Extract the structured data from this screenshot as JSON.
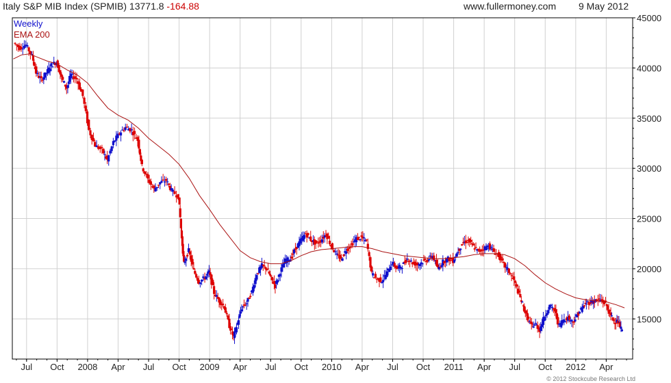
{
  "header": {
    "title": "Italy S&P MIB Index (SPMIB)",
    "last": "13771.8",
    "change": "-164.88",
    "source": "www.fullermoney.com",
    "date": "9 May 2012"
  },
  "legend": {
    "weekly": "Weekly",
    "ema": "EMA 200"
  },
  "copyright": "© 2012 Stockcube Research Ltd",
  "colors": {
    "up": "#1010cc",
    "down": "#dd0000",
    "ema": "#aa1111",
    "grid": "#d0d0d0",
    "axis": "#000000"
  },
  "chart_data": {
    "type": "candlestick",
    "frequency": "weekly",
    "ylim": [
      11000,
      45000
    ],
    "y_ticks": [
      15000,
      20000,
      25000,
      30000,
      35000,
      40000,
      45000
    ],
    "x_ticks": [
      {
        "label": "Jul",
        "t": 0
      },
      {
        "label": "Oct",
        "t": 3
      },
      {
        "label": "2008",
        "t": 6
      },
      {
        "label": "Apr",
        "t": 9
      },
      {
        "label": "Jul",
        "t": 12
      },
      {
        "label": "Oct",
        "t": 15
      },
      {
        "label": "2009",
        "t": 18
      },
      {
        "label": "Apr",
        "t": 21
      },
      {
        "label": "Jul",
        "t": 24
      },
      {
        "label": "Oct",
        "t": 27
      },
      {
        "label": "2010",
        "t": 30
      },
      {
        "label": "Apr",
        "t": 33
      },
      {
        "label": "Jul",
        "t": 36
      },
      {
        "label": "Oct",
        "t": 39
      },
      {
        "label": "2011",
        "t": 42
      },
      {
        "label": "Apr",
        "t": 45
      },
      {
        "label": "Jul",
        "t": 48
      },
      {
        "label": "Oct",
        "t": 51
      },
      {
        "label": "2012",
        "t": 54
      },
      {
        "label": "Apr",
        "t": 57
      }
    ],
    "t_range": [
      -1.4,
      59.6
    ],
    "series": [
      {
        "name": "Weekly",
        "style": "ohlc-candles",
        "points": [
          [
            -1.2,
            42500
          ],
          [
            -0.6,
            42000
          ],
          [
            0.0,
            42300
          ],
          [
            0.6,
            41200
          ],
          [
            1.0,
            39500
          ],
          [
            1.5,
            38800
          ],
          [
            2.0,
            39500
          ],
          [
            2.5,
            40300
          ],
          [
            3.0,
            40600
          ],
          [
            3.5,
            39000
          ],
          [
            4.0,
            38000
          ],
          [
            4.4,
            39300
          ],
          [
            5.0,
            38900
          ],
          [
            5.6,
            37200
          ],
          [
            6.2,
            33800
          ],
          [
            6.8,
            32300
          ],
          [
            7.5,
            31800
          ],
          [
            8.0,
            30800
          ],
          [
            8.6,
            32600
          ],
          [
            9.2,
            33500
          ],
          [
            9.8,
            34100
          ],
          [
            10.4,
            33800
          ],
          [
            11.0,
            32800
          ],
          [
            11.4,
            30200
          ],
          [
            12.0,
            28900
          ],
          [
            12.6,
            27900
          ],
          [
            13.2,
            28600
          ],
          [
            13.8,
            28800
          ],
          [
            14.3,
            27800
          ],
          [
            15.0,
            27200
          ],
          [
            15.3,
            23000
          ],
          [
            15.5,
            20500
          ],
          [
            16.0,
            21800
          ],
          [
            16.5,
            19800
          ],
          [
            17.0,
            18700
          ],
          [
            17.6,
            19100
          ],
          [
            18.0,
            19700
          ],
          [
            18.5,
            17600
          ],
          [
            19.0,
            16800
          ],
          [
            19.5,
            16200
          ],
          [
            20.0,
            14300
          ],
          [
            20.4,
            13200
          ],
          [
            20.8,
            14600
          ],
          [
            21.2,
            16100
          ],
          [
            21.7,
            16600
          ],
          [
            22.2,
            17700
          ],
          [
            22.7,
            19500
          ],
          [
            23.2,
            20300
          ],
          [
            23.7,
            20000
          ],
          [
            24.1,
            19000
          ],
          [
            24.5,
            18300
          ],
          [
            25.0,
            19700
          ],
          [
            25.5,
            20800
          ],
          [
            26.0,
            21000
          ],
          [
            26.5,
            22000
          ],
          [
            27.0,
            22800
          ],
          [
            27.5,
            23500
          ],
          [
            28.0,
            22900
          ],
          [
            28.5,
            22500
          ],
          [
            29.0,
            22800
          ],
          [
            29.5,
            23500
          ],
          [
            30.0,
            22300
          ],
          [
            30.6,
            21300
          ],
          [
            31.0,
            21000
          ],
          [
            31.5,
            21900
          ],
          [
            32.0,
            22400
          ],
          [
            32.5,
            23000
          ],
          [
            33.0,
            23100
          ],
          [
            33.5,
            22700
          ],
          [
            34.0,
            19500
          ],
          [
            34.5,
            19000
          ],
          [
            35.0,
            18800
          ],
          [
            35.5,
            19600
          ],
          [
            36.0,
            20600
          ],
          [
            36.5,
            20000
          ],
          [
            37.0,
            20300
          ],
          [
            37.5,
            21000
          ],
          [
            38.0,
            20600
          ],
          [
            38.5,
            20400
          ],
          [
            39.0,
            20700
          ],
          [
            39.5,
            20900
          ],
          [
            40.0,
            21300
          ],
          [
            40.5,
            20000
          ],
          [
            41.0,
            20700
          ],
          [
            41.5,
            21000
          ],
          [
            42.0,
            20800
          ],
          [
            42.5,
            21800
          ],
          [
            43.0,
            22600
          ],
          [
            43.5,
            22800
          ],
          [
            44.0,
            22200
          ],
          [
            44.5,
            21700
          ],
          [
            45.0,
            22000
          ],
          [
            45.5,
            22300
          ],
          [
            46.0,
            21700
          ],
          [
            46.5,
            21300
          ],
          [
            47.0,
            20400
          ],
          [
            47.5,
            19700
          ],
          [
            48.0,
            18800
          ],
          [
            48.5,
            17400
          ],
          [
            48.9,
            16200
          ],
          [
            49.3,
            15100
          ],
          [
            49.7,
            14300
          ],
          [
            50.1,
            14500
          ],
          [
            50.5,
            13900
          ],
          [
            51.0,
            15300
          ],
          [
            51.5,
            16300
          ],
          [
            52.0,
            15800
          ],
          [
            52.4,
            14300
          ],
          [
            52.8,
            14900
          ],
          [
            53.3,
            15100
          ],
          [
            53.8,
            14700
          ],
          [
            54.2,
            15400
          ],
          [
            54.7,
            16100
          ],
          [
            55.1,
            16600
          ],
          [
            55.6,
            16700
          ],
          [
            56.0,
            16800
          ],
          [
            56.5,
            16900
          ],
          [
            57.0,
            16500
          ],
          [
            57.4,
            15500
          ],
          [
            57.8,
            14800
          ],
          [
            58.2,
            14700
          ],
          [
            58.6,
            13800
          ]
        ]
      },
      {
        "name": "EMA 200",
        "style": "line",
        "points": [
          [
            -1.3,
            40900
          ],
          [
            -0.5,
            41300
          ],
          [
            0.3,
            41400
          ],
          [
            1.0,
            41100
          ],
          [
            2.0,
            40700
          ],
          [
            3.0,
            40400
          ],
          [
            4.0,
            39800
          ],
          [
            5.0,
            39300
          ],
          [
            6.0,
            38500
          ],
          [
            7.0,
            37200
          ],
          [
            8.0,
            36000
          ],
          [
            9.0,
            35300
          ],
          [
            10.0,
            34800
          ],
          [
            11.0,
            34000
          ],
          [
            12.0,
            33000
          ],
          [
            13.0,
            32200
          ],
          [
            14.0,
            31400
          ],
          [
            15.0,
            30400
          ],
          [
            16.0,
            29000
          ],
          [
            17.0,
            27300
          ],
          [
            18.0,
            25900
          ],
          [
            19.0,
            24400
          ],
          [
            20.0,
            23100
          ],
          [
            21.0,
            21800
          ],
          [
            22.0,
            21100
          ],
          [
            23.0,
            20700
          ],
          [
            24.0,
            20500
          ],
          [
            25.0,
            20500
          ],
          [
            26.0,
            20800
          ],
          [
            27.0,
            21300
          ],
          [
            28.0,
            21700
          ],
          [
            29.0,
            21900
          ],
          [
            30.0,
            22000
          ],
          [
            31.0,
            22100
          ],
          [
            32.0,
            22200
          ],
          [
            33.0,
            22200
          ],
          [
            34.0,
            22000
          ],
          [
            35.0,
            21700
          ],
          [
            36.0,
            21500
          ],
          [
            37.0,
            21300
          ],
          [
            38.0,
            21200
          ],
          [
            39.0,
            21100
          ],
          [
            40.0,
            21000
          ],
          [
            41.0,
            21000
          ],
          [
            42.0,
            21100
          ],
          [
            43.0,
            21200
          ],
          [
            44.0,
            21400
          ],
          [
            45.0,
            21500
          ],
          [
            46.0,
            21500
          ],
          [
            47.0,
            21400
          ],
          [
            48.0,
            21000
          ],
          [
            49.0,
            20300
          ],
          [
            50.0,
            19400
          ],
          [
            51.0,
            18600
          ],
          [
            52.0,
            18000
          ],
          [
            53.0,
            17500
          ],
          [
            54.0,
            17100
          ],
          [
            55.0,
            16900
          ],
          [
            56.0,
            16800
          ],
          [
            57.0,
            16700
          ],
          [
            58.0,
            16400
          ],
          [
            58.8,
            16100
          ]
        ]
      }
    ],
    "grid": true,
    "legend_position": "top-left"
  }
}
